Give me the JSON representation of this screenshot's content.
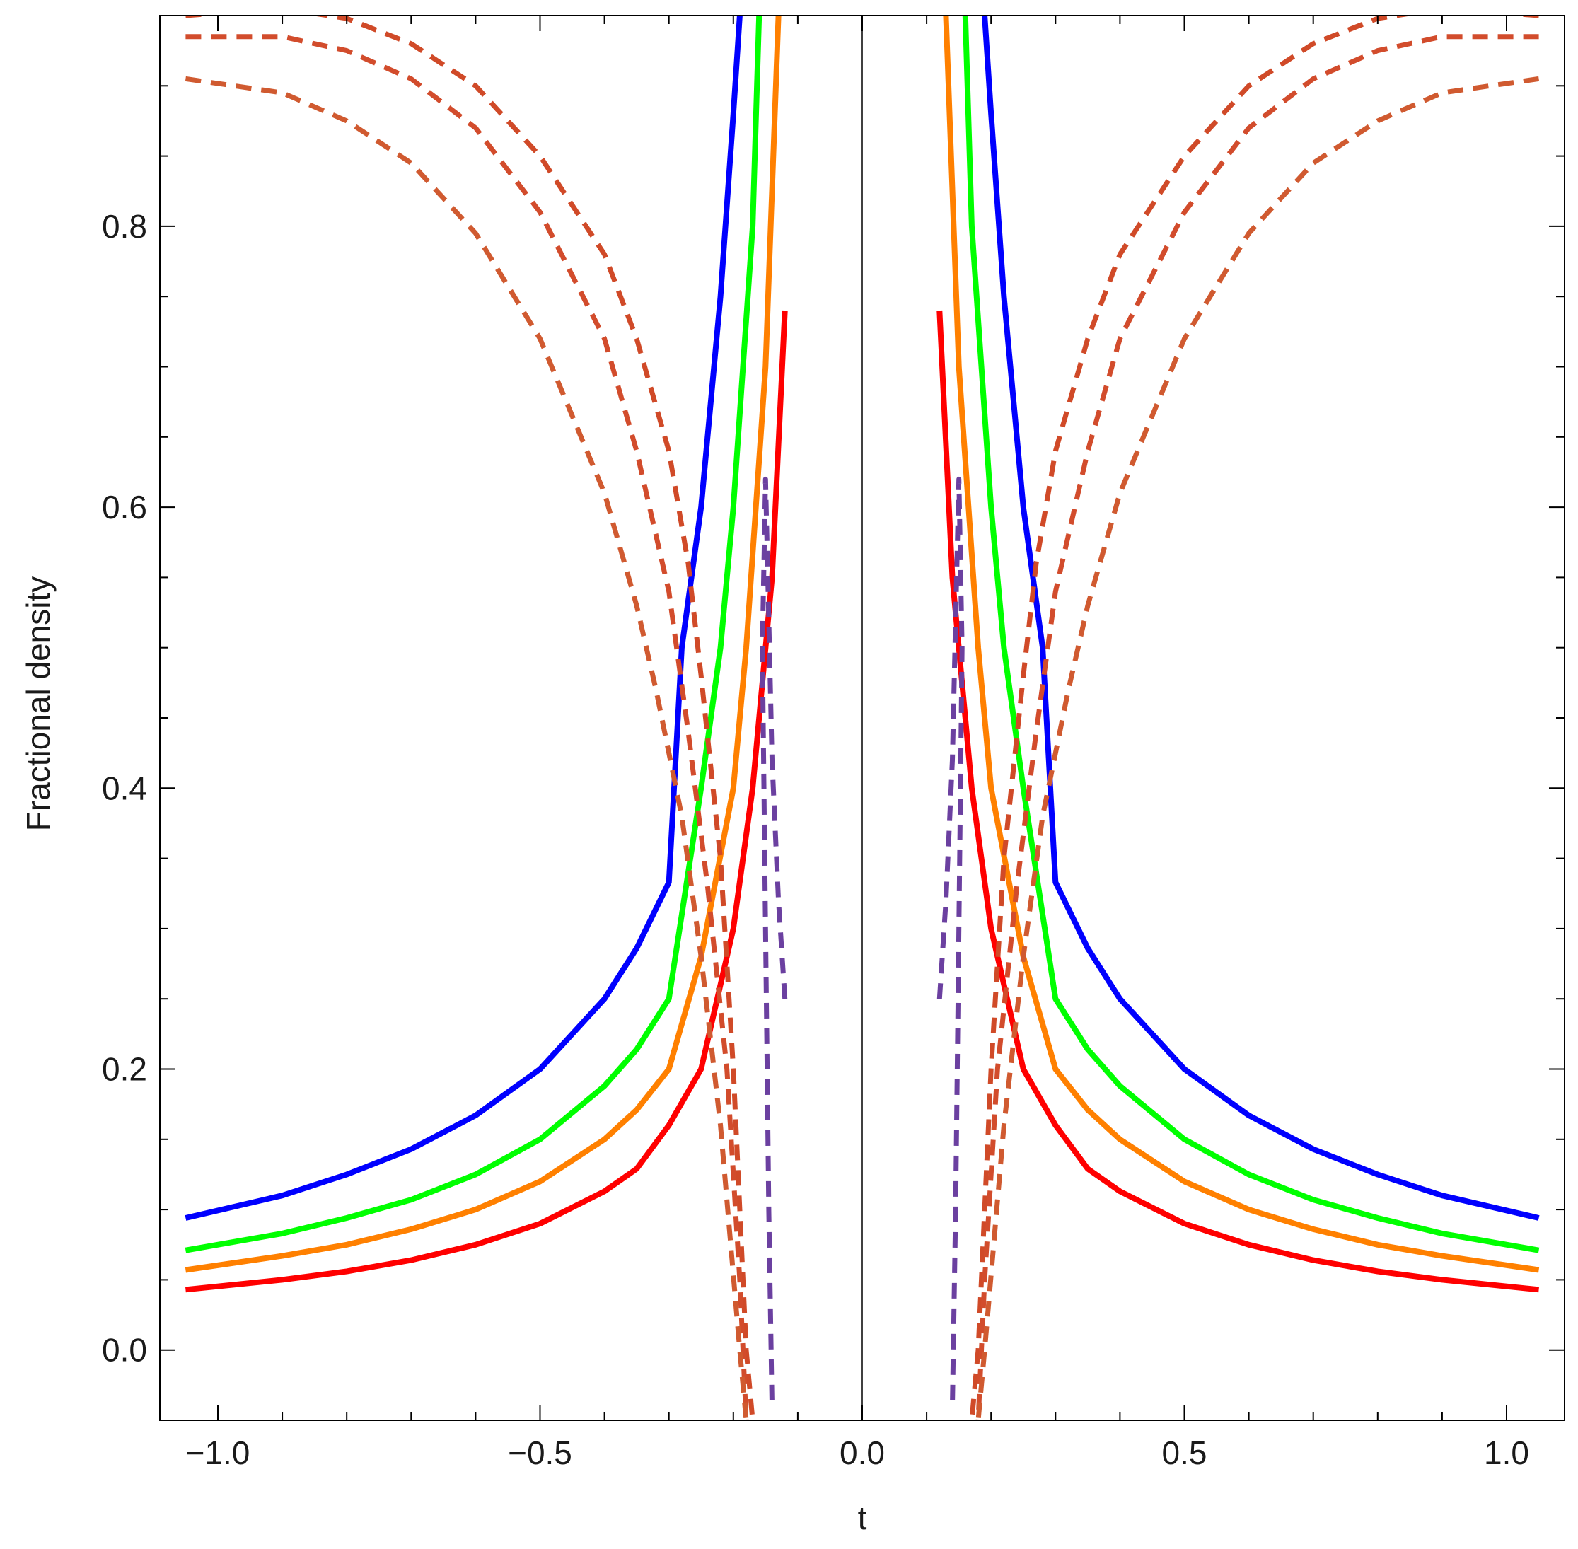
{
  "chart_data": {
    "type": "line",
    "title": "",
    "xlabel": "t",
    "ylabel": "Fractional density",
    "xlim": [
      -1.09,
      1.09
    ],
    "ylim": [
      -0.05,
      0.95
    ],
    "x_ticks": [
      -1.0,
      -0.5,
      0.0,
      0.5,
      1.0
    ],
    "x_tick_labels": [
      "−1.0",
      "−0.5",
      "0.0",
      "0.5",
      "1.0"
    ],
    "y_ticks": [
      0.0,
      0.2,
      0.4,
      0.6,
      0.8
    ],
    "y_tick_labels": [
      "0.0",
      "0.2",
      "0.4",
      "0.6",
      "0.8"
    ],
    "grid": false,
    "legend": "none",
    "zero_line": {
      "x": 0,
      "color": "#000000"
    },
    "series": [
      {
        "color": "#0000ff",
        "style": "solid",
        "points": [
          [
            -1.05,
            0.094
          ],
          [
            -0.9,
            0.11
          ],
          [
            -0.8,
            0.125
          ],
          [
            -0.7,
            0.143
          ],
          [
            -0.6,
            0.167
          ],
          [
            -0.5,
            0.2
          ],
          [
            -0.4,
            0.25
          ],
          [
            -0.35,
            0.286
          ],
          [
            -0.3,
            0.333
          ],
          [
            -0.28,
            0.5
          ],
          [
            -0.25,
            0.6
          ],
          [
            -0.22,
            0.75
          ],
          [
            -0.2,
            0.88
          ],
          [
            -0.19,
            0.95
          ]
        ],
        "mirror": true
      },
      {
        "color": "#00ff00",
        "style": "solid",
        "points": [
          [
            -1.05,
            0.071
          ],
          [
            -0.9,
            0.083
          ],
          [
            -0.8,
            0.094
          ],
          [
            -0.7,
            0.107
          ],
          [
            -0.6,
            0.125
          ],
          [
            -0.5,
            0.15
          ],
          [
            -0.4,
            0.188
          ],
          [
            -0.35,
            0.214
          ],
          [
            -0.3,
            0.25
          ],
          [
            -0.25,
            0.4
          ],
          [
            -0.22,
            0.5
          ],
          [
            -0.2,
            0.6
          ],
          [
            -0.17,
            0.8
          ],
          [
            -0.16,
            0.95
          ]
        ],
        "mirror": true
      },
      {
        "color": "#ff8000",
        "style": "solid",
        "points": [
          [
            -1.05,
            0.057
          ],
          [
            -0.9,
            0.067
          ],
          [
            -0.8,
            0.075
          ],
          [
            -0.7,
            0.086
          ],
          [
            -0.6,
            0.1
          ],
          [
            -0.5,
            0.12
          ],
          [
            -0.4,
            0.15
          ],
          [
            -0.35,
            0.171
          ],
          [
            -0.3,
            0.2
          ],
          [
            -0.25,
            0.28
          ],
          [
            -0.2,
            0.4
          ],
          [
            -0.18,
            0.5
          ],
          [
            -0.15,
            0.7
          ],
          [
            -0.13,
            0.95
          ]
        ],
        "mirror": true
      },
      {
        "color": "#ff0000",
        "style": "solid",
        "points": [
          [
            -1.05,
            0.043
          ],
          [
            -0.9,
            0.05
          ],
          [
            -0.8,
            0.056
          ],
          [
            -0.7,
            0.064
          ],
          [
            -0.6,
            0.075
          ],
          [
            -0.5,
            0.09
          ],
          [
            -0.4,
            0.113
          ],
          [
            -0.35,
            0.129
          ],
          [
            -0.3,
            0.16
          ],
          [
            -0.25,
            0.2
          ],
          [
            -0.2,
            0.3
          ],
          [
            -0.17,
            0.4
          ],
          [
            -0.14,
            0.55
          ],
          [
            -0.12,
            0.74
          ]
        ],
        "mirror": true
      },
      {
        "color": "#d04a28",
        "style": "dashed",
        "points": [
          [
            -1.05,
            0.95
          ],
          [
            -0.9,
            0.955
          ],
          [
            -0.8,
            0.948
          ],
          [
            -0.7,
            0.93
          ],
          [
            -0.6,
            0.9
          ],
          [
            -0.5,
            0.85
          ],
          [
            -0.4,
            0.78
          ],
          [
            -0.35,
            0.72
          ],
          [
            -0.3,
            0.64
          ],
          [
            -0.27,
            0.56
          ],
          [
            -0.25,
            0.48
          ],
          [
            -0.22,
            0.35
          ],
          [
            -0.2,
            0.2
          ],
          [
            -0.18,
            0.0
          ],
          [
            -0.17,
            -0.05
          ]
        ],
        "mirror": true
      },
      {
        "color": "#d24c2c",
        "style": "dashed",
        "points": [
          [
            -1.05,
            0.935
          ],
          [
            -0.9,
            0.935
          ],
          [
            -0.8,
            0.925
          ],
          [
            -0.7,
            0.905
          ],
          [
            -0.6,
            0.87
          ],
          [
            -0.5,
            0.81
          ],
          [
            -0.4,
            0.72
          ],
          [
            -0.35,
            0.64
          ],
          [
            -0.3,
            0.54
          ],
          [
            -0.27,
            0.44
          ],
          [
            -0.24,
            0.33
          ],
          [
            -0.21,
            0.2
          ],
          [
            -0.19,
            0.05
          ],
          [
            -0.18,
            -0.05
          ]
        ],
        "mirror": true
      },
      {
        "color": "#d05a30",
        "style": "dashed",
        "points": [
          [
            -1.05,
            0.905
          ],
          [
            -0.9,
            0.895
          ],
          [
            -0.8,
            0.875
          ],
          [
            -0.7,
            0.845
          ],
          [
            -0.6,
            0.795
          ],
          [
            -0.5,
            0.72
          ],
          [
            -0.4,
            0.61
          ],
          [
            -0.35,
            0.53
          ],
          [
            -0.32,
            0.47
          ],
          [
            -0.28,
            0.38
          ],
          [
            -0.25,
            0.28
          ],
          [
            -0.22,
            0.16
          ],
          [
            -0.19,
            0.0
          ],
          [
            -0.18,
            -0.05
          ]
        ],
        "mirror": true
      },
      {
        "color": "#6b40a0",
        "style": "dashed",
        "points": [
          [
            -0.12,
            0.25
          ],
          [
            -0.13,
            0.32
          ],
          [
            -0.14,
            0.42
          ],
          [
            -0.145,
            0.52
          ],
          [
            -0.15,
            0.62
          ],
          [
            -0.155,
            0.5
          ],
          [
            -0.15,
            0.3
          ],
          [
            -0.145,
            0.1
          ],
          [
            -0.14,
            -0.04
          ]
        ],
        "mirror": true
      }
    ]
  }
}
